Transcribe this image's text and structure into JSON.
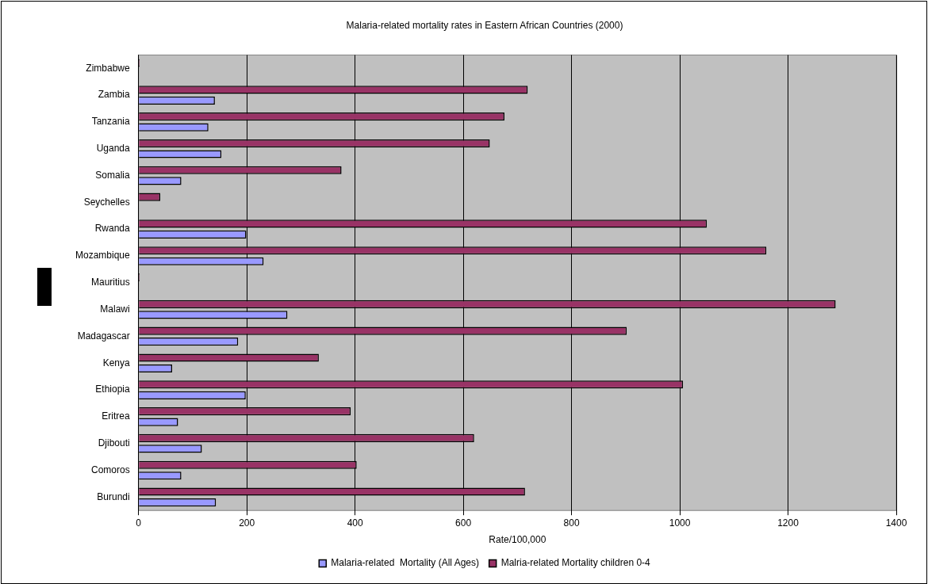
{
  "chart_data": {
    "type": "bar",
    "orientation": "horizontal",
    "title": "Malaria-related mortality rates in Eastern African Countries (2000)",
    "xlabel": "Rate/100,000",
    "categories": [
      "Zimbabwe",
      "Zambia",
      "Tanzania",
      "Uganda",
      "Somalia",
      "Seychelles",
      "Rwanda",
      "Mozambique",
      "Mauritius",
      "Malawi",
      "Madagascar",
      "Kenya",
      "Ethiopia",
      "Eritrea",
      "Djibouti",
      "Comoros",
      "Burundi"
    ],
    "series": [
      {
        "name": "Malaria-related  Mortality (All Ages)",
        "color": "#9999ff",
        "values": [
          null,
          141,
          129,
          153,
          79,
          null,
          199,
          231,
          null,
          275,
          184,
          62,
          198,
          73,
          117,
          79,
          143
        ]
      },
      {
        "name": "Malria-related Mortality children 0-4",
        "color": "#993366",
        "values": [
          2,
          719,
          676,
          649,
          375,
          40,
          1050,
          1160,
          2,
          1288,
          902,
          333,
          1006,
          392,
          620,
          403,
          714
        ]
      }
    ],
    "xlim": [
      0,
      1400
    ],
    "xticks": [
      0,
      200,
      400,
      600,
      800,
      1000,
      1200,
      1400
    ],
    "grid": "x",
    "legend": "bottom"
  }
}
